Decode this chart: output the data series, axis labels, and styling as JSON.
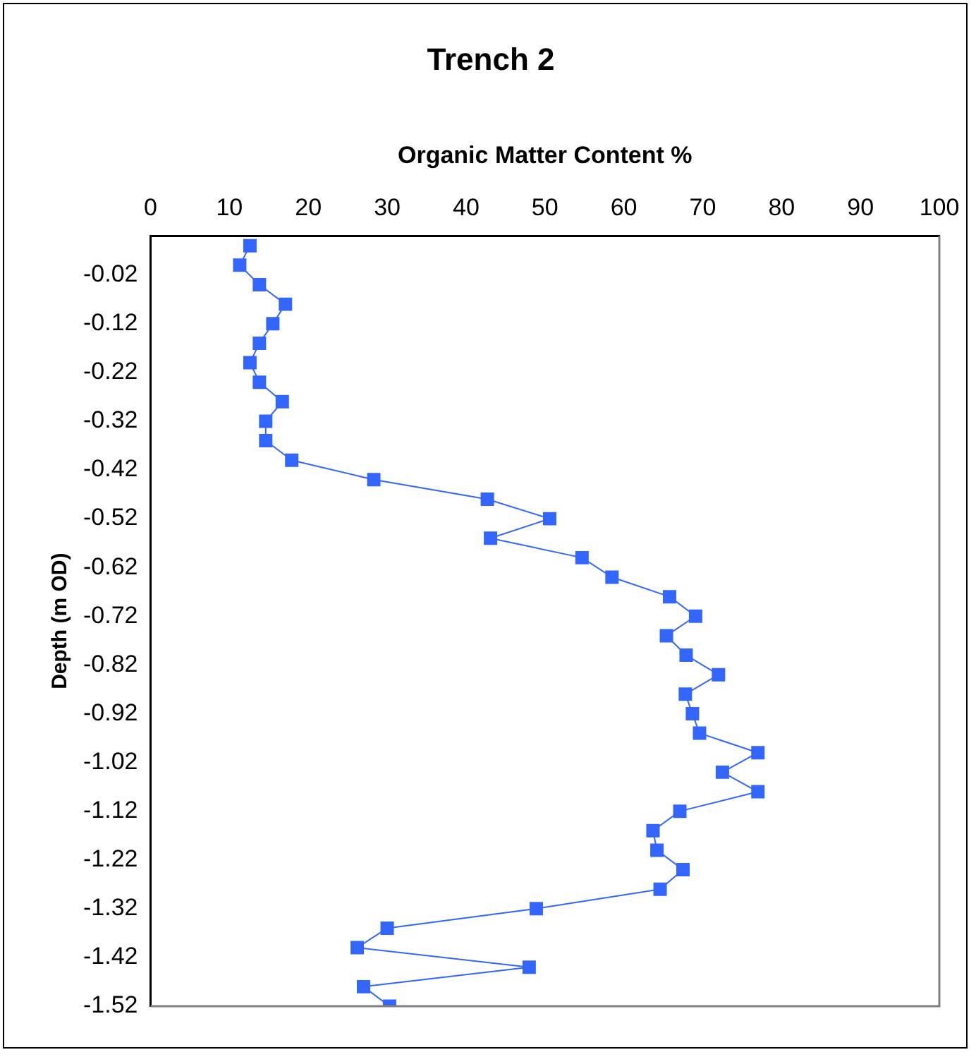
{
  "chart_data": {
    "type": "line",
    "title": "Trench 2",
    "xlabel": "Organic Matter Content %",
    "ylabel": "Depth (m OD)",
    "x": [
      12.6,
      11.3,
      13.8,
      17.1,
      15.5,
      13.8,
      12.6,
      13.8,
      16.7,
      14.6,
      14.6,
      17.9,
      28.3,
      42.7,
      50.6,
      43.1,
      54.7,
      58.5,
      65.8,
      69.1,
      65.4,
      67.9,
      72.0,
      67.8,
      68.7,
      69.6,
      77.0,
      72.5,
      77.0,
      67.1,
      63.7,
      64.2,
      67.5,
      64.6,
      48.9,
      30.0,
      26.2,
      48.0,
      27.0,
      30.3
    ],
    "series": [
      {
        "color": "#3366ff",
        "values": [
          0.04,
          0.0,
          -0.04,
          -0.08,
          -0.12,
          -0.16,
          -0.2,
          -0.24,
          -0.28,
          -0.32,
          -0.36,
          -0.4,
          -0.44,
          -0.48,
          -0.52,
          -0.56,
          -0.6,
          -0.64,
          -0.68,
          -0.72,
          -0.76,
          -0.8,
          -0.84,
          -0.88,
          -0.92,
          -0.96,
          -1.0,
          -1.04,
          -1.08,
          -1.12,
          -1.16,
          -1.2,
          -1.24,
          -1.28,
          -1.32,
          -1.36,
          -1.4,
          -1.44,
          -1.48,
          -1.52
        ]
      }
    ],
    "xlim": [
      0,
      100
    ],
    "xticks": [
      0,
      10,
      20,
      30,
      40,
      50,
      60,
      70,
      80,
      90,
      100
    ],
    "ylim": [
      -1.52,
      0.06
    ],
    "yticks": [
      -0.02,
      -0.12,
      -0.22,
      -0.32,
      -0.42,
      -0.52,
      -0.62,
      -0.72,
      -0.82,
      -0.92,
      -1.02,
      -1.12,
      -1.22,
      -1.32,
      -1.42,
      -1.52
    ],
    "grid": false,
    "legend": false,
    "marker": "square",
    "line_style": "solid"
  }
}
